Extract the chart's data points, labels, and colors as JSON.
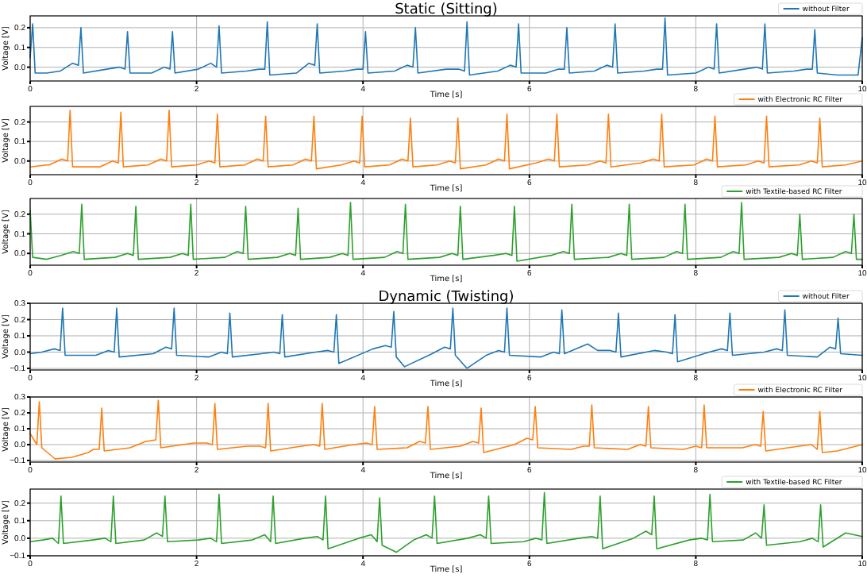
{
  "chart_data": [
    {
      "type": "line",
      "title": "Static (Sitting)",
      "xlabel": "Time [s]",
      "ylabel": "Voltage [V]",
      "xlim": [
        0,
        10
      ],
      "xticks": [
        0,
        2,
        4,
        6,
        8,
        10
      ],
      "ylim": [
        -0.07,
        0.26
      ],
      "yticks": [
        {
          "value": 0,
          "label": "0.0"
        },
        {
          "value": 0.1,
          "label": "0.1"
        },
        {
          "value": 0.2,
          "label": "0.2"
        }
      ],
      "grid": true,
      "legend": "top right",
      "series": [
        {
          "name": "without Filter",
          "color": "#1f77b4",
          "x": [
            0,
            0.03,
            0.06,
            0.2,
            0.36,
            0.51,
            0.58,
            0.61,
            0.64,
            0.92,
            1.07,
            1.14,
            1.17,
            1.2,
            1.46,
            1.61,
            1.68,
            1.71,
            1.74,
            2.02,
            2.17,
            2.24,
            2.27,
            2.3,
            2.6,
            2.75,
            2.82,
            2.85,
            2.88,
            3.2,
            3.35,
            3.42,
            3.45,
            3.48,
            3.78,
            3.93,
            4.0,
            4.03,
            4.06,
            4.38,
            4.53,
            4.6,
            4.63,
            4.66,
            5.0,
            5.15,
            5.22,
            5.25,
            5.28,
            5.62,
            5.77,
            5.84,
            5.87,
            5.9,
            6.2,
            6.35,
            6.42,
            6.45,
            6.48,
            6.78,
            6.93,
            7.0,
            7.03,
            7.06,
            7.38,
            7.53,
            7.6,
            7.63,
            7.66,
            8.0,
            8.15,
            8.22,
            8.25,
            8.28,
            8.58,
            8.73,
            8.8,
            8.83,
            8.86,
            9.18,
            9.33,
            9.4,
            9.43,
            9.46,
            9.7,
            9.95,
            10
          ],
          "values": [
            0.05,
            0.22,
            -0.03,
            -0.03,
            -0.02,
            0.02,
            0.01,
            0.2,
            -0.03,
            -0.01,
            0.0,
            -0.01,
            0.18,
            -0.03,
            -0.03,
            0.0,
            -0.01,
            0.18,
            -0.03,
            -0.01,
            0.02,
            0.0,
            0.21,
            -0.03,
            -0.02,
            -0.01,
            -0.01,
            0.23,
            -0.04,
            -0.03,
            0.02,
            0.01,
            0.22,
            -0.03,
            -0.02,
            -0.01,
            -0.01,
            0.18,
            -0.03,
            -0.02,
            0.01,
            0.0,
            0.2,
            -0.03,
            -0.01,
            -0.01,
            -0.02,
            0.23,
            -0.04,
            -0.02,
            0.01,
            0.0,
            0.22,
            -0.03,
            -0.03,
            -0.01,
            -0.01,
            0.2,
            -0.03,
            -0.02,
            0.01,
            0.0,
            0.22,
            -0.03,
            -0.02,
            -0.01,
            -0.01,
            0.25,
            -0.04,
            -0.03,
            0.0,
            -0.01,
            0.22,
            -0.03,
            -0.01,
            0.0,
            -0.01,
            0.22,
            -0.03,
            -0.02,
            -0.01,
            -0.01,
            0.19,
            -0.03,
            -0.04,
            -0.04,
            0.15
          ]
        }
      ]
    },
    {
      "type": "line",
      "xlabel": "Time [s]",
      "ylabel": "Voltage [V]",
      "xlim": [
        0,
        10
      ],
      "xticks": [
        0,
        2,
        4,
        6,
        8,
        10
      ],
      "ylim": [
        -0.07,
        0.28
      ],
      "yticks": [
        {
          "value": 0,
          "label": "0.0"
        },
        {
          "value": 0.1,
          "label": "0.1"
        },
        {
          "value": 0.2,
          "label": "0.2"
        }
      ],
      "grid": true,
      "legend": "top right",
      "series": [
        {
          "name": "with Electronic RC Filter",
          "color": "#ff7f0e",
          "x": [
            0,
            0.2,
            0.23,
            0.38,
            0.45,
            0.48,
            0.51,
            0.84,
            0.99,
            1.06,
            1.09,
            1.12,
            1.42,
            1.57,
            1.64,
            1.67,
            1.7,
            2.0,
            2.15,
            2.22,
            2.25,
            2.28,
            2.58,
            2.73,
            2.8,
            2.83,
            2.86,
            3.16,
            3.31,
            3.38,
            3.41,
            3.44,
            3.74,
            3.89,
            3.96,
            3.99,
            4.02,
            4.32,
            4.47,
            4.54,
            4.57,
            4.6,
            4.89,
            5.04,
            5.11,
            5.14,
            5.17,
            5.48,
            5.63,
            5.7,
            5.73,
            5.76,
            6.08,
            6.23,
            6.3,
            6.33,
            6.36,
            6.7,
            6.85,
            6.92,
            6.95,
            6.98,
            7.34,
            7.49,
            7.56,
            7.59,
            7.62,
            7.98,
            8.13,
            8.2,
            8.23,
            8.26,
            8.6,
            8.75,
            8.82,
            8.85,
            8.88,
            9.24,
            9.39,
            9.46,
            9.49,
            9.52,
            9.8,
            10
          ],
          "values": [
            -0.03,
            -0.02,
            -0.02,
            0.01,
            0.0,
            0.26,
            -0.03,
            -0.03,
            0.0,
            -0.01,
            0.25,
            -0.03,
            -0.02,
            0.01,
            0.0,
            0.26,
            -0.03,
            -0.02,
            0.0,
            -0.01,
            0.24,
            -0.03,
            -0.02,
            0.01,
            0.0,
            0.23,
            -0.03,
            -0.02,
            0.01,
            0.0,
            0.23,
            -0.04,
            -0.02,
            0.0,
            -0.01,
            0.23,
            -0.03,
            -0.02,
            0.01,
            0.0,
            0.22,
            -0.03,
            -0.02,
            0.0,
            -0.01,
            0.22,
            -0.04,
            -0.02,
            0.01,
            0.0,
            0.24,
            -0.04,
            -0.01,
            0.01,
            0.0,
            0.24,
            -0.03,
            -0.02,
            0.0,
            -0.01,
            0.24,
            -0.03,
            -0.01,
            0.01,
            0.0,
            0.24,
            -0.03,
            -0.02,
            0.01,
            0.0,
            0.23,
            -0.03,
            -0.02,
            0.0,
            -0.01,
            0.23,
            -0.03,
            -0.02,
            0.0,
            -0.01,
            0.22,
            -0.03,
            -0.02,
            0.0
          ]
        }
      ]
    },
    {
      "type": "line",
      "xlabel": "Time [s]",
      "ylabel": "Voltage [V]",
      "xlim": [
        0,
        10
      ],
      "xticks": [
        0,
        2,
        4,
        6,
        8,
        10
      ],
      "ylim": [
        -0.06,
        0.28
      ],
      "yticks": [
        {
          "value": 0,
          "label": "0.0"
        },
        {
          "value": 0.1,
          "label": "0.1"
        },
        {
          "value": 0.2,
          "label": "0.2"
        }
      ],
      "grid": true,
      "legend": "top right",
      "series": [
        {
          "name": "with Textile-based RC Filter",
          "color": "#2ca02c",
          "x": [
            0,
            0.03,
            0.2,
            0.37,
            0.52,
            0.59,
            0.62,
            0.65,
            1.02,
            1.17,
            1.24,
            1.27,
            1.3,
            1.68,
            1.83,
            1.9,
            1.93,
            1.96,
            2.34,
            2.49,
            2.56,
            2.59,
            2.62,
            2.97,
            3.12,
            3.19,
            3.22,
            3.25,
            3.6,
            3.75,
            3.82,
            3.85,
            3.88,
            4.26,
            4.41,
            4.48,
            4.51,
            4.54,
            4.92,
            5.07,
            5.14,
            5.17,
            5.2,
            5.57,
            5.72,
            5.79,
            5.82,
            5.85,
            6.26,
            6.41,
            6.48,
            6.51,
            6.54,
            6.95,
            7.1,
            7.17,
            7.2,
            7.23,
            7.62,
            7.77,
            7.84,
            7.87,
            7.9,
            8.3,
            8.45,
            8.52,
            8.55,
            8.58,
            9.0,
            9.15,
            9.22,
            9.25,
            9.28,
            9.65,
            9.8,
            9.87,
            9.9,
            9.93,
            10
          ],
          "values": [
            0.22,
            -0.02,
            -0.03,
            -0.01,
            0.01,
            0.0,
            0.25,
            -0.03,
            -0.02,
            0.0,
            -0.01,
            0.24,
            -0.03,
            -0.02,
            0.0,
            -0.01,
            0.25,
            -0.03,
            -0.02,
            0.01,
            0.0,
            0.24,
            -0.03,
            -0.02,
            0.0,
            -0.01,
            0.23,
            -0.03,
            -0.02,
            0.0,
            -0.01,
            0.26,
            -0.03,
            -0.02,
            0.01,
            0.0,
            0.25,
            -0.03,
            -0.02,
            0.0,
            -0.01,
            0.24,
            -0.03,
            -0.01,
            0.0,
            -0.01,
            0.24,
            -0.04,
            -0.01,
            0.01,
            0.0,
            0.25,
            -0.03,
            -0.02,
            0.0,
            -0.01,
            0.25,
            -0.03,
            -0.02,
            0.01,
            0.0,
            0.25,
            -0.03,
            -0.02,
            0.01,
            0.0,
            0.26,
            -0.03,
            -0.02,
            0.0,
            -0.01,
            0.2,
            -0.03,
            -0.02,
            0.01,
            0.0,
            0.2,
            -0.03,
            -0.03
          ]
        }
      ]
    },
    {
      "type": "line",
      "title": "Dynamic (Twisting)",
      "xlabel": "Time [s]",
      "ylabel": "Voltage [V]",
      "xlim": [
        0,
        10
      ],
      "xticks": [
        0,
        2,
        4,
        6,
        8,
        10
      ],
      "ylim": [
        -0.11,
        0.3
      ],
      "yticks": [
        {
          "value": -0.1,
          "label": "−0.1"
        },
        {
          "value": 0,
          "label": "0.0"
        },
        {
          "value": 0.1,
          "label": "0.1"
        },
        {
          "value": 0.2,
          "label": "0.2"
        },
        {
          "value": 0.3,
          "label": "0.3"
        }
      ],
      "grid": true,
      "legend": "top right",
      "series": [
        {
          "name": "without Filter",
          "color": "#1f77b4",
          "x": [
            0,
            0.14,
            0.29,
            0.36,
            0.39,
            0.42,
            0.79,
            0.94,
            1.01,
            1.04,
            1.07,
            1.48,
            1.63,
            1.7,
            1.73,
            1.76,
            2.15,
            2.3,
            2.37,
            2.4,
            2.43,
            2.78,
            2.93,
            3.0,
            3.03,
            3.06,
            3.43,
            3.58,
            3.65,
            3.68,
            3.71,
            4.12,
            4.27,
            4.34,
            4.37,
            4.4,
            4.5,
            4.83,
            4.98,
            5.05,
            5.08,
            5.11,
            5.25,
            5.48,
            5.63,
            5.7,
            5.73,
            5.76,
            6.14,
            6.29,
            6.36,
            6.39,
            6.42,
            6.7,
            6.82,
            6.97,
            7.04,
            7.07,
            7.1,
            7.5,
            7.65,
            7.72,
            7.75,
            7.78,
            8.16,
            8.31,
            8.38,
            8.41,
            8.44,
            8.82,
            8.97,
            9.04,
            9.07,
            9.1,
            9.46,
            9.61,
            9.68,
            9.71,
            9.74,
            10
          ],
          "values": [
            -0.01,
            0.0,
            0.02,
            0.01,
            0.27,
            -0.02,
            -0.02,
            0.01,
            0.0,
            0.27,
            -0.03,
            -0.01,
            0.03,
            0.02,
            0.27,
            -0.02,
            -0.03,
            0.0,
            -0.01,
            0.24,
            -0.03,
            -0.01,
            0.0,
            -0.01,
            0.23,
            -0.03,
            0.0,
            0.01,
            0.0,
            0.23,
            -0.07,
            0.02,
            0.04,
            0.03,
            0.25,
            -0.03,
            -0.09,
            -0.01,
            0.03,
            0.02,
            0.27,
            -0.02,
            -0.1,
            -0.02,
            0.01,
            0.0,
            0.27,
            -0.02,
            -0.03,
            0.0,
            -0.01,
            0.26,
            -0.01,
            0.05,
            0.01,
            0.01,
            0.0,
            0.24,
            -0.03,
            0.01,
            0.0,
            -0.01,
            0.23,
            -0.06,
            0.0,
            0.02,
            0.01,
            0.24,
            -0.02,
            0.0,
            0.02,
            0.01,
            0.26,
            -0.02,
            -0.03,
            0.03,
            0.02,
            0.21,
            -0.01,
            -0.02
          ]
        }
      ]
    },
    {
      "type": "line",
      "xlabel": "Time [s]",
      "ylabel": "Voltage [V]",
      "xlim": [
        0,
        10
      ],
      "xticks": [
        0,
        2,
        4,
        6,
        8,
        10
      ],
      "ylim": [
        -0.11,
        0.3
      ],
      "yticks": [
        {
          "value": -0.1,
          "label": "−0.1"
        },
        {
          "value": 0,
          "label": "0.0"
        },
        {
          "value": 0.1,
          "label": "0.1"
        },
        {
          "value": 0.2,
          "label": "0.2"
        },
        {
          "value": 0.3,
          "label": "0.3"
        }
      ],
      "grid": true,
      "legend": "top right",
      "series": [
        {
          "name": "with Electronic RC Filter",
          "color": "#ff7f0e",
          "x": [
            0,
            0.08,
            0.11,
            0.14,
            0.3,
            0.5,
            0.7,
            0.76,
            0.83,
            0.86,
            0.89,
            1.2,
            1.39,
            1.51,
            1.54,
            1.57,
            1.97,
            2.12,
            2.19,
            2.22,
            2.25,
            2.61,
            2.76,
            2.83,
            2.86,
            2.89,
            3.26,
            3.41,
            3.48,
            3.51,
            3.54,
            3.89,
            4.04,
            4.11,
            4.14,
            4.17,
            4.53,
            4.68,
            4.75,
            4.78,
            4.81,
            5.17,
            5.32,
            5.39,
            5.42,
            5.45,
            5.82,
            5.97,
            6.04,
            6.07,
            6.1,
            6.5,
            6.65,
            6.72,
            6.75,
            6.78,
            7.18,
            7.33,
            7.4,
            7.43,
            7.46,
            7.85,
            8.0,
            8.07,
            8.1,
            8.13,
            8.56,
            8.71,
            8.78,
            8.81,
            8.84,
            9.24,
            9.39,
            9.46,
            9.49,
            9.52,
            9.7,
            10
          ],
          "values": [
            0.07,
            0.0,
            0.27,
            -0.02,
            -0.09,
            -0.08,
            -0.05,
            -0.03,
            -0.03,
            0.23,
            -0.04,
            -0.02,
            0.02,
            0.03,
            0.28,
            -0.02,
            0.01,
            0.01,
            0.0,
            0.26,
            -0.03,
            -0.01,
            -0.01,
            -0.02,
            0.26,
            -0.04,
            -0.01,
            0.0,
            -0.01,
            0.26,
            -0.03,
            0.0,
            0.01,
            0.0,
            0.24,
            -0.03,
            -0.02,
            0.02,
            0.01,
            0.24,
            -0.03,
            -0.01,
            0.02,
            0.01,
            0.23,
            -0.05,
            0.0,
            0.04,
            0.03,
            0.24,
            -0.02,
            -0.03,
            -0.01,
            -0.01,
            0.25,
            -0.02,
            -0.03,
            0.0,
            -0.01,
            0.24,
            -0.02,
            -0.03,
            -0.01,
            -0.02,
            0.25,
            -0.02,
            -0.02,
            0.0,
            -0.01,
            0.21,
            -0.04,
            -0.01,
            0.0,
            -0.03,
            0.21,
            -0.05,
            -0.04,
            0.0
          ]
        }
      ]
    },
    {
      "type": "line",
      "xlabel": "Time [s]",
      "ylabel": "Voltage [V]",
      "xlim": [
        0,
        10
      ],
      "xticks": [
        0,
        2,
        4,
        6,
        8,
        10
      ],
      "ylim": [
        -0.1,
        0.28
      ],
      "yticks": [
        {
          "value": -0.1,
          "label": "−0.1"
        },
        {
          "value": 0,
          "label": "0.0"
        },
        {
          "value": 0.1,
          "label": "0.1"
        },
        {
          "value": 0.2,
          "label": "0.2"
        }
      ],
      "grid": true,
      "legend": "top right",
      "series": [
        {
          "name": "with Textile-based RC Filter",
          "color": "#2ca02c",
          "x": [
            0,
            0.15,
            0.27,
            0.34,
            0.37,
            0.4,
            0.75,
            0.9,
            0.97,
            1.0,
            1.03,
            1.37,
            1.52,
            1.59,
            1.62,
            1.65,
            2.02,
            2.17,
            2.24,
            2.27,
            2.3,
            2.67,
            2.82,
            2.89,
            2.92,
            2.95,
            3.3,
            3.45,
            3.52,
            3.55,
            3.58,
            3.95,
            4.1,
            4.17,
            4.2,
            4.23,
            4.4,
            4.61,
            4.76,
            4.83,
            4.86,
            4.89,
            5.26,
            5.41,
            5.48,
            5.51,
            5.54,
            5.93,
            6.08,
            6.15,
            6.18,
            6.21,
            6.6,
            6.75,
            6.82,
            6.85,
            6.88,
            7.25,
            7.4,
            7.47,
            7.5,
            7.53,
            7.92,
            8.07,
            8.14,
            8.17,
            8.2,
            8.57,
            8.72,
            8.79,
            8.82,
            8.85,
            9.25,
            9.4,
            9.47,
            9.5,
            9.53,
            9.8,
            10
          ],
          "values": [
            -0.02,
            -0.01,
            0.0,
            -0.03,
            0.24,
            -0.03,
            -0.01,
            0.0,
            -0.02,
            0.24,
            -0.03,
            -0.01,
            0.03,
            0.01,
            0.24,
            -0.02,
            -0.01,
            0.0,
            -0.02,
            0.25,
            -0.03,
            -0.01,
            0.02,
            -0.02,
            0.24,
            -0.03,
            0.0,
            0.01,
            -0.01,
            0.24,
            -0.06,
            0.0,
            0.02,
            -0.02,
            0.23,
            -0.04,
            -0.08,
            -0.01,
            0.02,
            0.0,
            0.24,
            -0.03,
            0.0,
            0.02,
            0.0,
            0.24,
            -0.03,
            -0.02,
            0.0,
            -0.01,
            0.26,
            -0.03,
            0.0,
            0.01,
            0.0,
            0.24,
            -0.06,
            0.0,
            0.04,
            0.02,
            0.24,
            -0.06,
            -0.01,
            0.0,
            -0.01,
            0.25,
            -0.02,
            -0.01,
            0.03,
            0.0,
            0.19,
            -0.04,
            -0.02,
            0.0,
            -0.02,
            0.19,
            -0.05,
            0.03,
            0.01
          ]
        }
      ]
    }
  ]
}
